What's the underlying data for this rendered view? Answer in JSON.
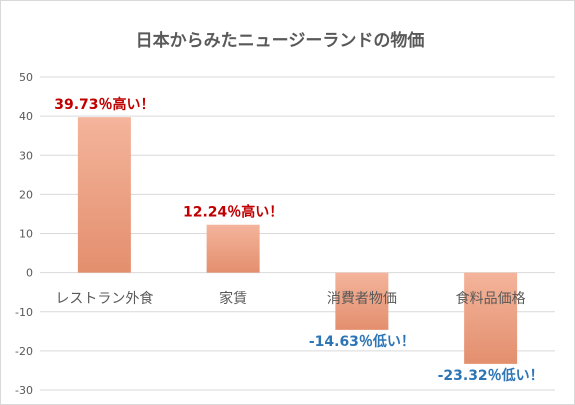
{
  "chart_data": {
    "type": "bar",
    "title": "日本からみたニュージーランドの物価",
    "categories": [
      "レストラン外食",
      "家賃",
      "消費者物価",
      "食料品価格"
    ],
    "values": [
      39.73,
      12.24,
      -14.63,
      -23.32
    ],
    "data_labels": [
      "39.73％高い！",
      "12.24％高い！",
      "-14.63％低い！",
      "-23.32％低い！"
    ],
    "ylim": [
      -30,
      50
    ],
    "yticks": [
      "50",
      "40",
      "30",
      "20",
      "10",
      "0",
      "-10",
      "-20",
      "-30"
    ],
    "grid": true,
    "xlabel": "",
    "ylabel": "",
    "colors": {
      "bar_top": "#f4b49b",
      "bar_bottom": "#e38f6e",
      "positive_label": "#c00000",
      "negative_label": "#2e75b6",
      "grid": "#d9d9d9",
      "text": "#595959"
    }
  }
}
